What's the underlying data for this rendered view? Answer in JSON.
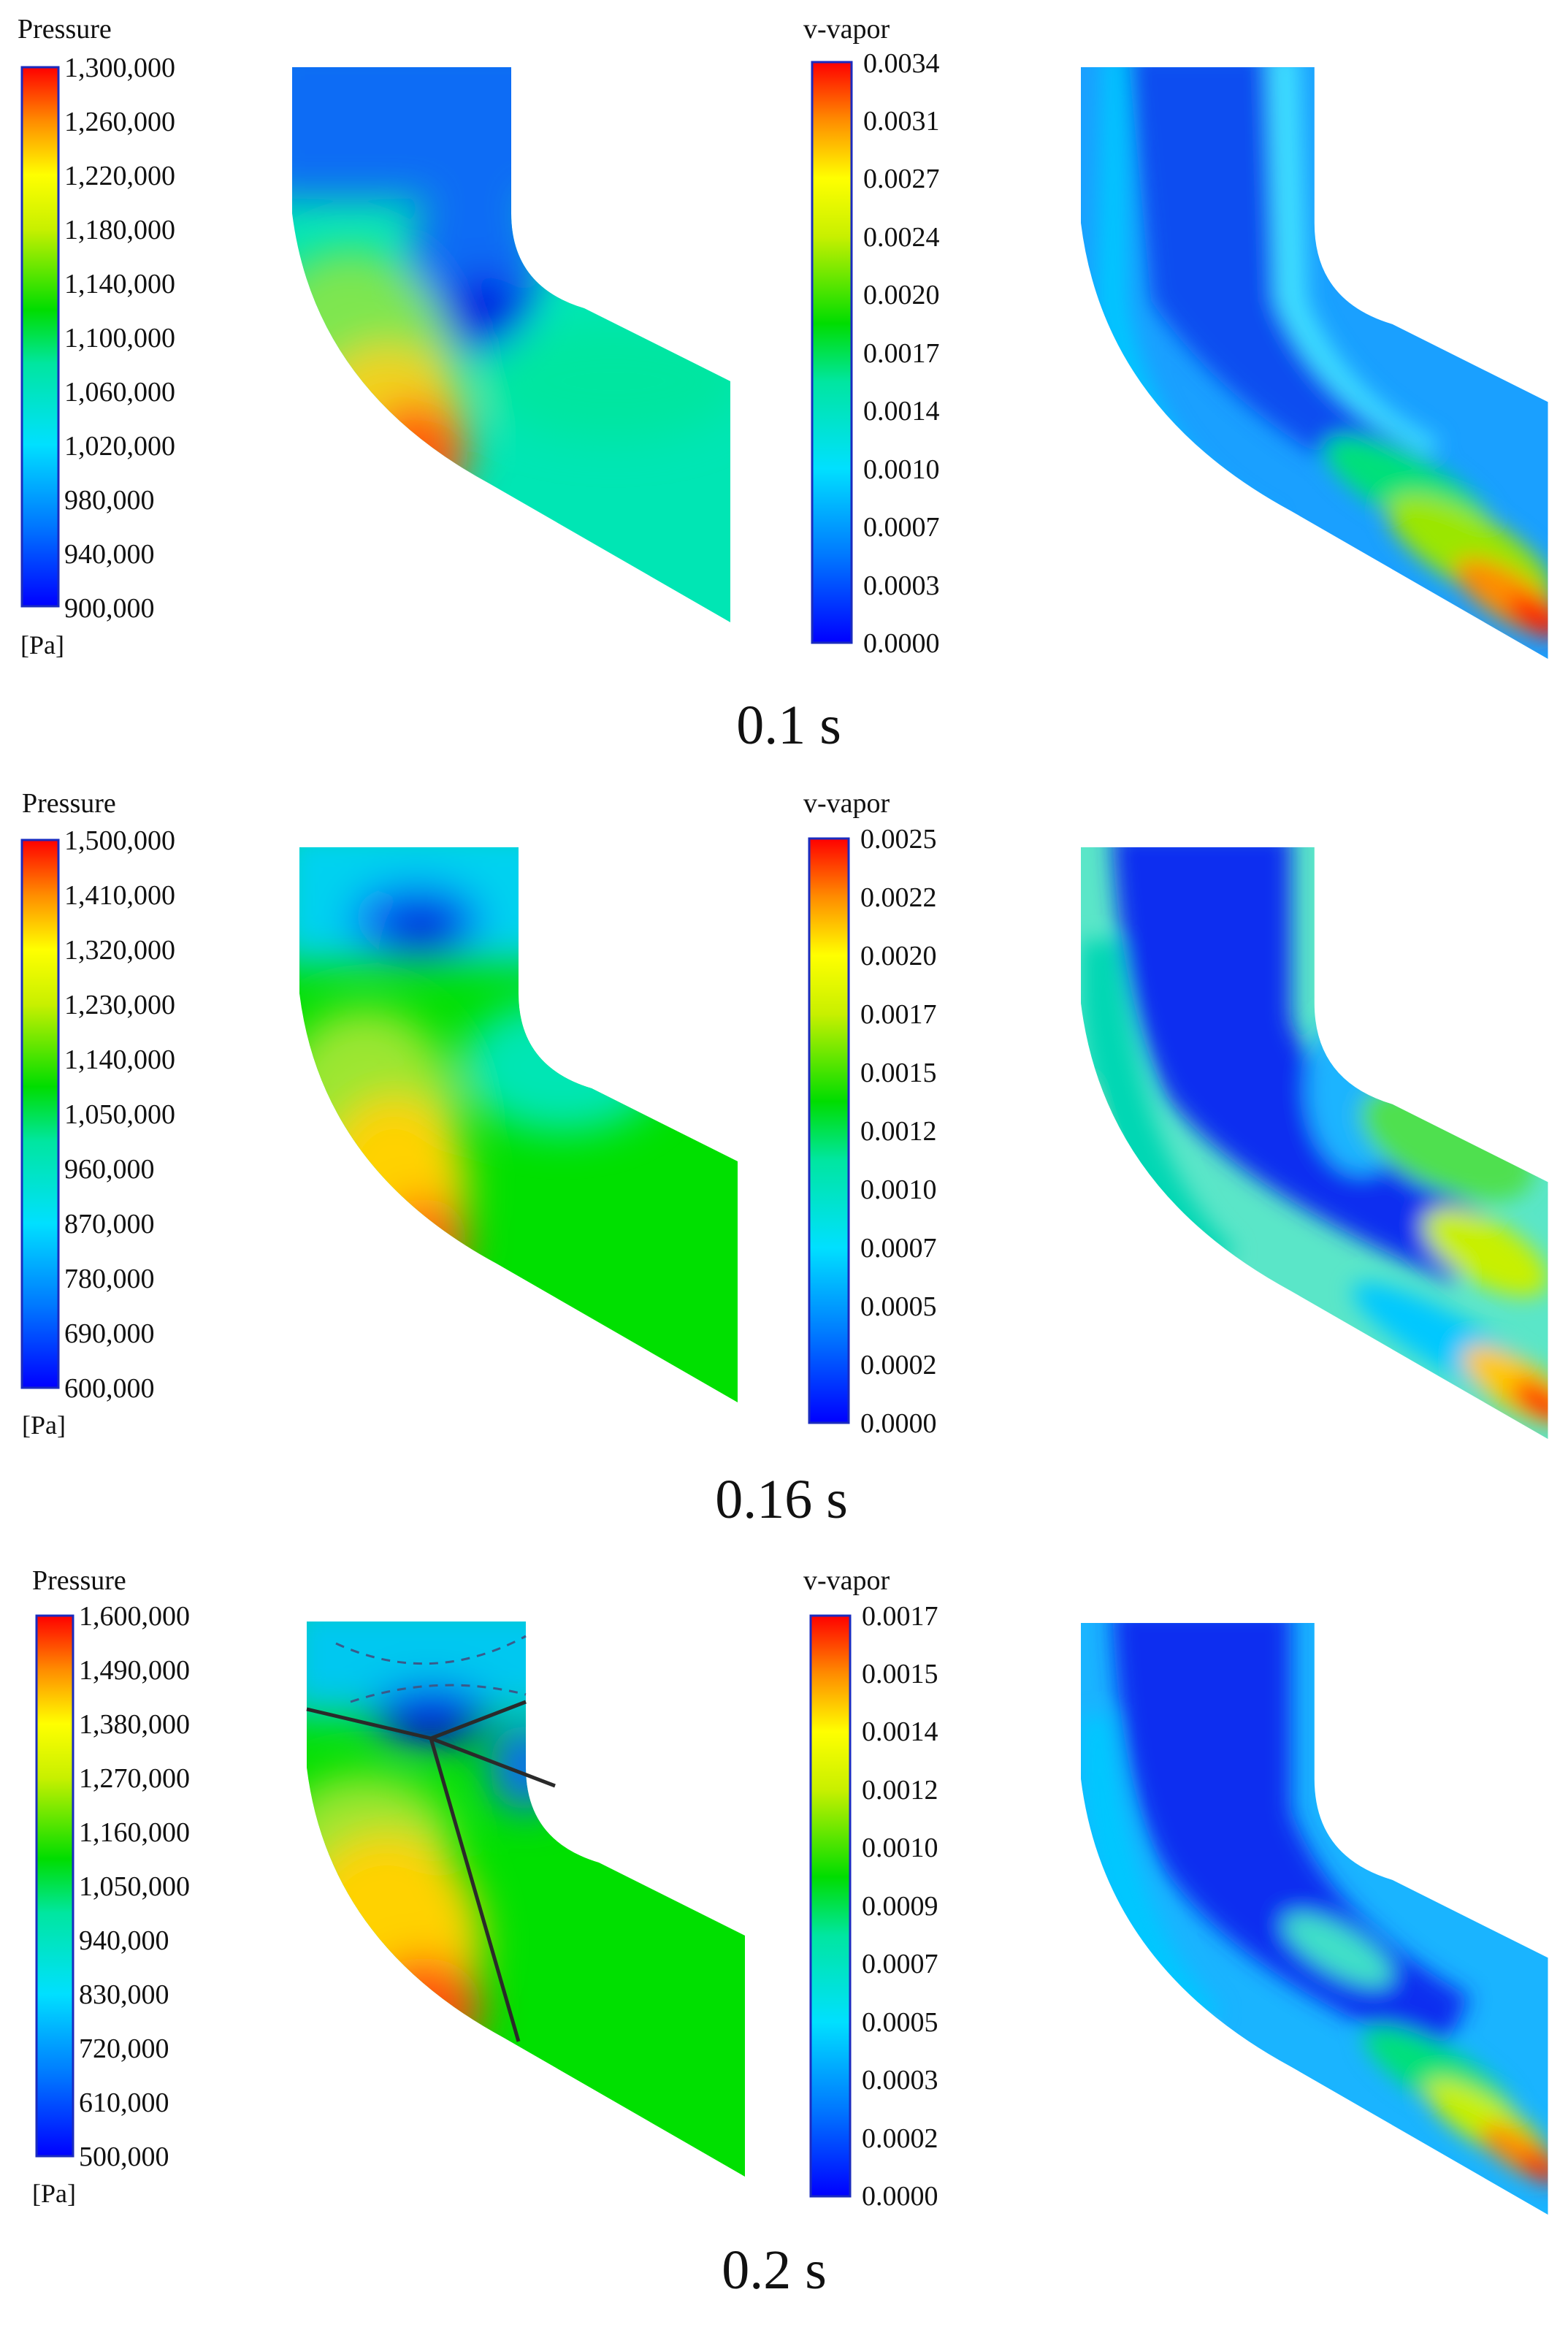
{
  "panels": [
    {
      "caption": "0.1 s",
      "pressure": {
        "title": "Pressure",
        "unit": "[Pa]",
        "ticks": [
          "1,300,000",
          "1,260,000",
          "1,220,000",
          "1,180,000",
          "1,140,000",
          "1,100,000",
          "1,060,000",
          "1,020,000",
          "980,000",
          "940,000",
          "900,000"
        ]
      },
      "vapor": {
        "title": "v-vapor",
        "ticks": [
          "0.0034",
          "0.0031",
          "0.0027",
          "0.0024",
          "0.0020",
          "0.0017",
          "0.0014",
          "0.0010",
          "0.0007",
          "0.0003",
          "0.0000"
        ]
      }
    },
    {
      "caption": "0.16 s",
      "pressure": {
        "title": "Pressure",
        "unit": "[Pa]",
        "ticks": [
          "1,500,000",
          "1,410,000",
          "1,320,000",
          "1,230,000",
          "1,140,000",
          "1,050,000",
          "960,000",
          "870,000",
          "780,000",
          "690,000",
          "600,000"
        ]
      },
      "vapor": {
        "title": "v-vapor",
        "ticks": [
          "0.0025",
          "0.0022",
          "0.0020",
          "0.0017",
          "0.0015",
          "0.0012",
          "0.0010",
          "0.0007",
          "0.0005",
          "0.0002",
          "0.0000"
        ]
      }
    },
    {
      "caption": "0.2 s",
      "pressure": {
        "title": "Pressure",
        "unit": "[Pa]",
        "ticks": [
          "1,600,000",
          "1,490,000",
          "1,380,000",
          "1,270,000",
          "1,160,000",
          "1,050,000",
          "940,000",
          "830,000",
          "720,000",
          "610,000",
          "500,000"
        ]
      },
      "vapor": {
        "title": "v-vapor",
        "ticks": [
          "0.0017",
          "0.0015",
          "0.0014",
          "0.0012",
          "0.0010",
          "0.0009",
          "0.0007",
          "0.0005",
          "0.0003",
          "0.0002",
          "0.0000"
        ]
      }
    }
  ],
  "colormap": [
    "#0000ff",
    "#0066ff",
    "#00c8ff",
    "#00e6c8",
    "#00e650",
    "#00cc00",
    "#9be600",
    "#ffff00",
    "#ffb400",
    "#ff5a00",
    "#ff0000"
  ]
}
